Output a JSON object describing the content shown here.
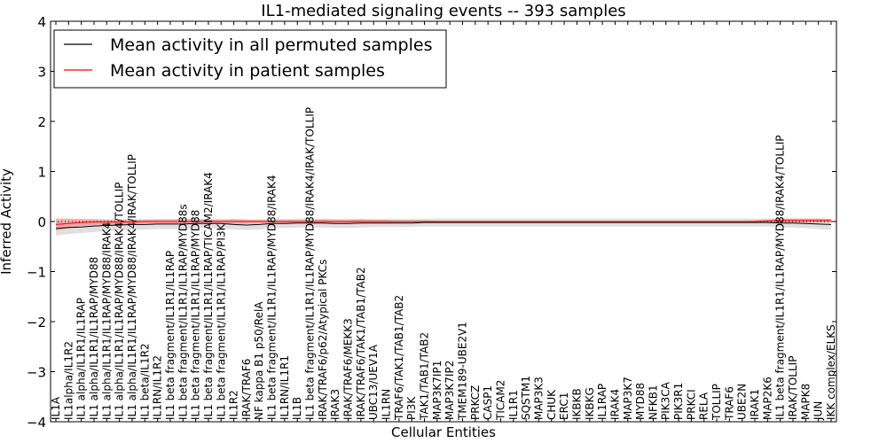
{
  "chart_data": {
    "type": "line",
    "title": "IL1-mediated signaling events -- 393 samples",
    "xlabel": "Cellular Entities",
    "ylabel": "Inferred Activity",
    "ylim": [
      -4,
      4
    ],
    "yticks": [
      "4",
      "3",
      "2",
      "1",
      "0",
      "−1",
      "−2",
      "−3",
      "−4"
    ],
    "legend_position": "top-left",
    "categories": [
      "IL1A",
      "IL1alpha/IL1R2",
      "IL1 alpha/IL1R1/IL1RAP",
      "IL1 alpha/IL1R1/IL1RAP/MYD88",
      "IL1 alpha/IL1R1/IL1RAP/MYD88/IRAK4",
      "IL1 alpha/IL1R1/IL1RAP/MYD88/IRAK4/TOLLIP",
      "IL1 alpha/IL1R1/IL1RAP/MYD88/IRAK4/IRAK/TOLLIP",
      "IL1 beta/IL1R2",
      "IL1RN/IL1R2",
      "IL1 beta fragment/IL1R1/IL1RAP",
      "IL1 beta fragment/IL1R1/IL1RAP/MYD88s",
      "IL1 beta fragment/IL1R1/IL1RAP/MYD88",
      "IL1 beta fragment/IL1R1/IL1RAP/TICAM2/IRAK4",
      "IL1 beta fragment/IL1R1/IL1RAP/PI3K",
      "IL1R2",
      "IRAK/TRAF6",
      "NF kappa B1 p50/RelA",
      "IL1 beta fragment/IL1R1/IL1RAP/MYD88/IRAK4",
      "IL1RN/IL1R1",
      "IL1B",
      "IL1 beta fragment/IL1R1/IL1RAP/MYD88/IRAK4/IRAK/TOLLIP",
      "IRAK/TRAF6/p62/Atypical PKCs",
      "IRAK3",
      "IRAK/TRAF6/MEKK3",
      "IRAK/TRAF6/TAK1/TAB1/TAB2",
      "UBC13/UEV1A",
      "IL1RN",
      "TRAF6/TAK1/TAB1/TAB2",
      "PI3K",
      "TAK1/TAB1/TAB2",
      "MAP3K7IP1",
      "MAP3K7IP2",
      "TMEM189-UBE2V1",
      "PRKCZ",
      "CASP1",
      "TICAM2",
      "IL1R1",
      "SQSTM1",
      "MAP3K3",
      "CHUK",
      "ERC1",
      "IKBKB",
      "IKBKG",
      "IL1RAP",
      "IRAK4",
      "MAP3K7",
      "MYD88",
      "NFKB1",
      "PIK3CA",
      "PIK3R1",
      "PRKCI",
      "RELA",
      "TOLLIP",
      "TRAF6",
      "UBE2N",
      "IRAK1",
      "MAP2K6",
      "IL1 beta fragment/IL1R1/IL1RAP/MYD88/IRAK4/TOLLIP",
      "IRAK/TOLLIP",
      "MAPK8",
      "JUN",
      "IKK complex/ELKS"
    ],
    "series": [
      {
        "name": "Mean activity in all permuted samples",
        "color": "#000000",
        "band_color": "#bbbbbb",
        "values": [
          -0.14,
          -0.12,
          -0.11,
          -0.09,
          -0.08,
          -0.07,
          -0.06,
          -0.06,
          -0.05,
          -0.05,
          -0.05,
          -0.04,
          -0.04,
          -0.04,
          -0.06,
          -0.07,
          -0.06,
          -0.04,
          -0.04,
          -0.03,
          -0.03,
          -0.03,
          -0.04,
          -0.04,
          -0.03,
          -0.03,
          -0.03,
          -0.03,
          -0.03,
          -0.02,
          -0.02,
          -0.02,
          -0.02,
          -0.02,
          -0.02,
          -0.02,
          -0.02,
          -0.02,
          -0.02,
          -0.02,
          -0.02,
          -0.02,
          -0.02,
          -0.02,
          -0.02,
          -0.02,
          -0.02,
          -0.02,
          -0.02,
          -0.02,
          -0.02,
          -0.02,
          -0.02,
          -0.02,
          -0.02,
          -0.02,
          -0.02,
          -0.03,
          -0.03,
          -0.04,
          -0.05,
          -0.06
        ],
        "band": [
          0.14,
          0.13,
          0.12,
          0.12,
          0.11,
          0.11,
          0.11,
          0.1,
          0.1,
          0.1,
          0.1,
          0.1,
          0.09,
          0.09,
          0.1,
          0.1,
          0.1,
          0.09,
          0.09,
          0.09,
          0.09,
          0.09,
          0.09,
          0.09,
          0.09,
          0.08,
          0.08,
          0.08,
          0.08,
          0.08,
          0.08,
          0.08,
          0.08,
          0.08,
          0.08,
          0.08,
          0.08,
          0.08,
          0.08,
          0.08,
          0.08,
          0.08,
          0.08,
          0.08,
          0.08,
          0.08,
          0.08,
          0.08,
          0.08,
          0.08,
          0.08,
          0.08,
          0.08,
          0.08,
          0.08,
          0.08,
          0.08,
          0.09,
          0.09,
          0.09,
          0.1,
          0.11
        ]
      },
      {
        "name": "Mean activity in patient samples",
        "color": "#ff0000",
        "band_color": "#f08080",
        "values": [
          -0.06,
          -0.04,
          -0.02,
          -0.01,
          -0.01,
          -0.01,
          -0.01,
          0.0,
          0.0,
          0.0,
          0.0,
          0.0,
          0.0,
          0.0,
          0.0,
          0.0,
          0.0,
          0.0,
          0.0,
          0.0,
          0.0,
          0.0,
          0.0,
          0.0,
          0.0,
          0.0,
          0.0,
          0.0,
          0.0,
          0.0,
          0.0,
          0.0,
          0.0,
          0.0,
          0.0,
          0.0,
          0.0,
          0.0,
          0.0,
          0.0,
          0.0,
          0.0,
          0.0,
          0.0,
          0.0,
          0.0,
          0.0,
          0.0,
          0.0,
          0.0,
          0.0,
          0.0,
          0.0,
          0.0,
          0.0,
          0.0,
          0.01,
          0.02,
          0.02,
          0.02,
          0.02,
          0.02
        ],
        "band": [
          0.12,
          0.1,
          0.07,
          0.06,
          0.05,
          0.05,
          0.04,
          0.04,
          0.04,
          0.04,
          0.04,
          0.04,
          0.04,
          0.03,
          0.05,
          0.04,
          0.03,
          0.03,
          0.03,
          0.03,
          0.03,
          0.04,
          0.03,
          0.03,
          0.04,
          0.03,
          0.03,
          0.02,
          0.02,
          0.02,
          0.01,
          0.01,
          0.01,
          0.01,
          0.01,
          0.01,
          0.01,
          0.01,
          0.01,
          0.01,
          0.01,
          0.01,
          0.01,
          0.01,
          0.01,
          0.01,
          0.01,
          0.01,
          0.01,
          0.01,
          0.01,
          0.01,
          0.01,
          0.01,
          0.01,
          0.02,
          0.03,
          0.04,
          0.04,
          0.04,
          0.04,
          0.03
        ]
      }
    ]
  }
}
